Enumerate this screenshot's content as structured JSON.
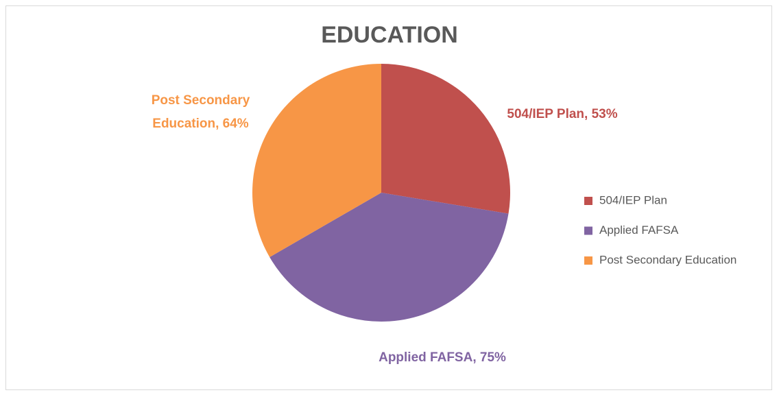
{
  "chart_data": {
    "type": "pie",
    "title": "EDUCATION",
    "categories": [
      "504/IEP Plan",
      "Applied FAFSA",
      "Post Secondary Education"
    ],
    "values": [
      53,
      75,
      64
    ],
    "value_labels": [
      "504/IEP Plan, 53%",
      "Applied FAFSA, 75%",
      "Post Secondary Education, 64%"
    ],
    "colors": [
      "#c0504d",
      "#8064a2",
      "#f79646"
    ],
    "legend": "right"
  }
}
